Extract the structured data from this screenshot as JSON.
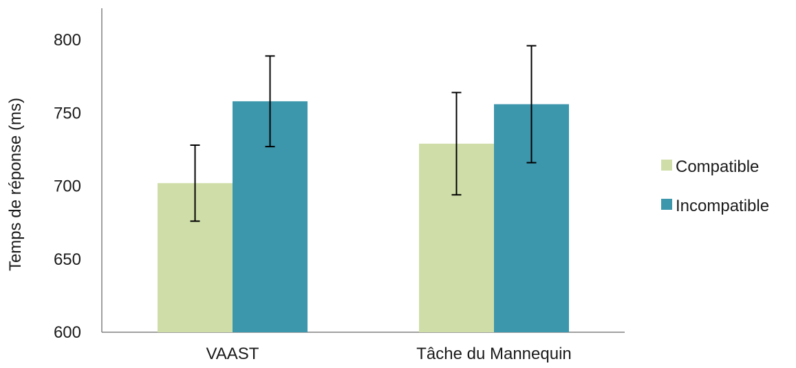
{
  "chart_data": {
    "type": "bar",
    "title": "",
    "xlabel": "",
    "ylabel": "Temps de réponse (ms)",
    "ylim": [
      600,
      800
    ],
    "yticks": [
      600,
      650,
      700,
      750,
      800
    ],
    "grid": false,
    "legend_position": "right",
    "categories": [
      "VAAST",
      "Tâche du Mannequin"
    ],
    "series": [
      {
        "name": "Compatible",
        "color": "#cfdea9",
        "values": [
          702,
          729
        ],
        "error": [
          26,
          35
        ]
      },
      {
        "name": "Incompatible",
        "color": "#3c96ac",
        "values": [
          758,
          756
        ],
        "error": [
          31,
          40
        ]
      }
    ]
  }
}
